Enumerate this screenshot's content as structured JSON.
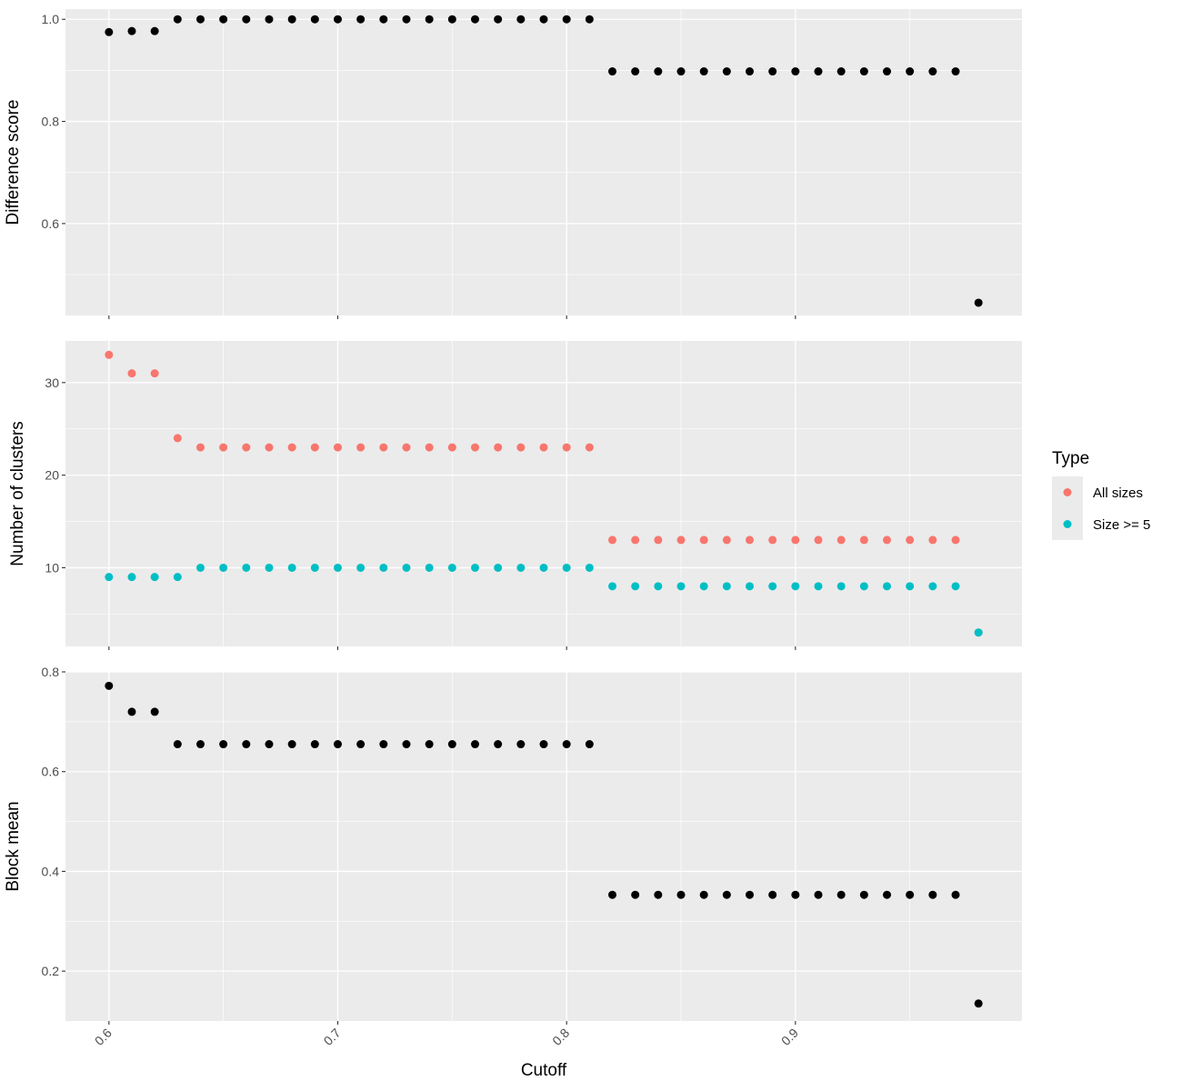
{
  "chart_data": [
    {
      "type": "scatter",
      "ylabel": "Difference score",
      "yticks": [
        0.6,
        0.8,
        1.0
      ],
      "ytick_labels": [
        "0.6",
        "0.8",
        "1.0"
      ],
      "ylim": [
        0.42,
        1.02
      ],
      "series": [
        {
          "color": "#000000",
          "x": [
            0.6,
            0.61,
            0.62,
            0.63,
            0.64,
            0.65,
            0.66,
            0.67,
            0.68,
            0.69,
            0.7,
            0.71,
            0.72,
            0.73,
            0.74,
            0.75,
            0.76,
            0.77,
            0.78,
            0.79,
            0.8,
            0.81,
            0.82,
            0.83,
            0.84,
            0.85,
            0.86,
            0.87,
            0.88,
            0.89,
            0.9,
            0.91,
            0.92,
            0.93,
            0.94,
            0.95,
            0.96,
            0.97,
            0.98
          ],
          "values": [
            0.975,
            0.977,
            0.977,
            1.0,
            1.0,
            1.0,
            1.0,
            1.0,
            1.0,
            1.0,
            1.0,
            1.0,
            1.0,
            1.0,
            1.0,
            1.0,
            1.0,
            1.0,
            1.0,
            1.0,
            1.0,
            1.0,
            0.898,
            0.898,
            0.898,
            0.898,
            0.898,
            0.898,
            0.898,
            0.898,
            0.898,
            0.898,
            0.898,
            0.898,
            0.898,
            0.898,
            0.898,
            0.898,
            0.445
          ]
        }
      ]
    },
    {
      "type": "scatter",
      "ylabel": "Number of clusters",
      "yticks": [
        10,
        20,
        30
      ],
      "ytick_labels": [
        "10",
        "20",
        "30"
      ],
      "ylim": [
        1.5,
        34.5
      ],
      "series": [
        {
          "name": "All sizes",
          "color": "#F8766D",
          "x": [
            0.6,
            0.61,
            0.62,
            0.63,
            0.64,
            0.65,
            0.66,
            0.67,
            0.68,
            0.69,
            0.7,
            0.71,
            0.72,
            0.73,
            0.74,
            0.75,
            0.76,
            0.77,
            0.78,
            0.79,
            0.8,
            0.81,
            0.82,
            0.83,
            0.84,
            0.85,
            0.86,
            0.87,
            0.88,
            0.89,
            0.9,
            0.91,
            0.92,
            0.93,
            0.94,
            0.95,
            0.96,
            0.97,
            0.98
          ],
          "values": [
            33,
            31,
            31,
            24,
            23,
            23,
            23,
            23,
            23,
            23,
            23,
            23,
            23,
            23,
            23,
            23,
            23,
            23,
            23,
            23,
            23,
            23,
            13,
            13,
            13,
            13,
            13,
            13,
            13,
            13,
            13,
            13,
            13,
            13,
            13,
            13,
            13,
            13,
            3
          ]
        },
        {
          "name": "Size >= 5",
          "color": "#00BFC4",
          "x": [
            0.6,
            0.61,
            0.62,
            0.63,
            0.64,
            0.65,
            0.66,
            0.67,
            0.68,
            0.69,
            0.7,
            0.71,
            0.72,
            0.73,
            0.74,
            0.75,
            0.76,
            0.77,
            0.78,
            0.79,
            0.8,
            0.81,
            0.82,
            0.83,
            0.84,
            0.85,
            0.86,
            0.87,
            0.88,
            0.89,
            0.9,
            0.91,
            0.92,
            0.93,
            0.94,
            0.95,
            0.96,
            0.97,
            0.98
          ],
          "values": [
            9,
            9,
            9,
            9,
            10,
            10,
            10,
            10,
            10,
            10,
            10,
            10,
            10,
            10,
            10,
            10,
            10,
            10,
            10,
            10,
            10,
            10,
            8,
            8,
            8,
            8,
            8,
            8,
            8,
            8,
            8,
            8,
            8,
            8,
            8,
            8,
            8,
            8,
            3
          ]
        }
      ]
    },
    {
      "type": "scatter",
      "ylabel": "Block mean",
      "yticks": [
        0.2,
        0.4,
        0.6,
        0.8
      ],
      "ytick_labels": [
        "0.2",
        "0.4",
        "0.6",
        "0.8"
      ],
      "ylim": [
        0.1,
        0.8
      ],
      "series": [
        {
          "color": "#000000",
          "x": [
            0.6,
            0.61,
            0.62,
            0.63,
            0.64,
            0.65,
            0.66,
            0.67,
            0.68,
            0.69,
            0.7,
            0.71,
            0.72,
            0.73,
            0.74,
            0.75,
            0.76,
            0.77,
            0.78,
            0.79,
            0.8,
            0.81,
            0.82,
            0.83,
            0.84,
            0.85,
            0.86,
            0.87,
            0.88,
            0.89,
            0.9,
            0.91,
            0.92,
            0.93,
            0.94,
            0.95,
            0.96,
            0.97,
            0.98
          ],
          "values": [
            0.772,
            0.72,
            0.72,
            0.655,
            0.655,
            0.655,
            0.655,
            0.655,
            0.655,
            0.655,
            0.655,
            0.655,
            0.655,
            0.655,
            0.655,
            0.655,
            0.655,
            0.655,
            0.655,
            0.655,
            0.655,
            0.655,
            0.353,
            0.353,
            0.353,
            0.353,
            0.353,
            0.353,
            0.353,
            0.353,
            0.353,
            0.353,
            0.353,
            0.353,
            0.353,
            0.353,
            0.353,
            0.353,
            0.135
          ]
        }
      ]
    }
  ],
  "x_axis": {
    "label": "Cutoff",
    "ticks": [
      0.6,
      0.7,
      0.8,
      0.9
    ],
    "tick_labels": [
      "0.6",
      "0.7",
      "0.8",
      "0.9"
    ],
    "xlim": [
      0.581,
      0.999
    ]
  },
  "legend": {
    "title": "Type",
    "placement": "right",
    "items": [
      {
        "label": "All sizes",
        "color": "#F8766D"
      },
      {
        "label": "Size >= 5",
        "color": "#00BFC4"
      }
    ]
  },
  "colors": {
    "panel_bg": "#EBEBEB",
    "grid": "#FFFFFF",
    "tick": "#333333"
  }
}
